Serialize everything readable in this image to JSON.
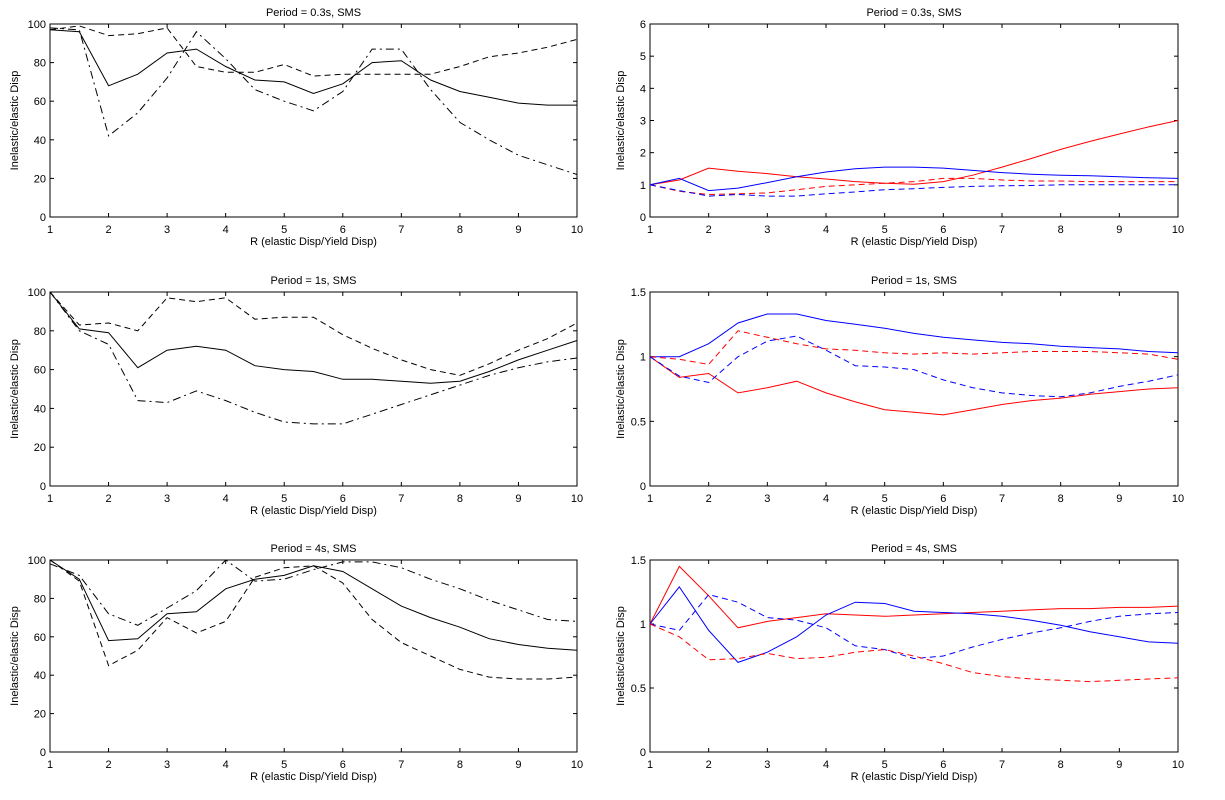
{
  "chart_data": [
    {
      "type": "line",
      "title": "Period = 0.3s, SMS",
      "xlabel": "R (elastic Disp/Yield Disp)",
      "ylabel": "Inelastic/elastic Disp",
      "xlim": [
        1,
        10
      ],
      "ylim": [
        0,
        100
      ],
      "x": [
        1,
        1.5,
        2,
        2.5,
        3,
        3.5,
        4,
        4.5,
        5,
        5.5,
        6,
        6.5,
        7,
        7.5,
        8,
        8.5,
        9,
        9.5,
        10
      ],
      "xticks": [
        1,
        2,
        3,
        4,
        5,
        6,
        7,
        8,
        9,
        10
      ],
      "yticks": [
        0,
        20,
        40,
        60,
        80,
        100
      ],
      "series": [
        {
          "color": "#000000",
          "dash": "solid",
          "values": [
            97,
            96,
            68,
            74,
            85,
            87,
            78,
            71,
            70,
            64,
            69,
            80,
            81,
            71,
            65,
            62,
            59,
            58,
            58
          ]
        },
        {
          "color": "#000000",
          "dash": "dashed",
          "values": [
            97,
            99,
            94,
            95,
            98,
            78,
            75,
            75,
            79,
            73,
            74,
            74,
            74,
            74,
            78,
            83,
            85,
            88,
            92
          ]
        },
        {
          "color": "#000000",
          "dash": "dashdot",
          "values": [
            98,
            97,
            42,
            54,
            72,
            96,
            82,
            66,
            60,
            55,
            65,
            87,
            87,
            66,
            49,
            40,
            32,
            27,
            22
          ]
        }
      ]
    },
    {
      "type": "line",
      "title": "Period = 0.3s, SMS",
      "xlabel": "R (elastic Disp/Yield Disp)",
      "ylabel": "Inelastic/elastic Disp",
      "xlim": [
        1,
        10
      ],
      "ylim": [
        0,
        6
      ],
      "x": [
        1,
        1.5,
        2,
        2.5,
        3,
        3.5,
        4,
        4.5,
        5,
        5.5,
        6,
        6.5,
        7,
        7.5,
        8,
        8.5,
        9,
        9.5,
        10
      ],
      "xticks": [
        1,
        2,
        3,
        4,
        5,
        6,
        7,
        8,
        9,
        10
      ],
      "yticks": [
        0,
        1,
        2,
        3,
        4,
        5,
        6
      ],
      "series": [
        {
          "color": "#ff0000",
          "dash": "solid",
          "values": [
            1.0,
            1.15,
            1.52,
            1.42,
            1.35,
            1.25,
            1.18,
            1.1,
            1.05,
            1.02,
            1.1,
            1.3,
            1.55,
            1.82,
            2.1,
            2.35,
            2.58,
            2.8,
            3.0
          ]
        },
        {
          "color": "#0000ff",
          "dash": "solid",
          "values": [
            1.0,
            1.2,
            0.82,
            0.9,
            1.07,
            1.25,
            1.4,
            1.5,
            1.55,
            1.55,
            1.52,
            1.45,
            1.38,
            1.33,
            1.3,
            1.28,
            1.25,
            1.22,
            1.2
          ]
        },
        {
          "color": "#ff0000",
          "dash": "dashed",
          "values": [
            1.0,
            0.8,
            0.7,
            0.72,
            0.75,
            0.85,
            0.95,
            1.0,
            1.05,
            1.1,
            1.2,
            1.2,
            1.15,
            1.12,
            1.12,
            1.1,
            1.1,
            1.1,
            1.1
          ]
        },
        {
          "color": "#0000ff",
          "dash": "dashed",
          "values": [
            1.0,
            0.82,
            0.65,
            0.7,
            0.65,
            0.65,
            0.72,
            0.78,
            0.85,
            0.88,
            0.92,
            0.95,
            0.97,
            0.98,
            1.0,
            1.0,
            1.0,
            1.0,
            1.0
          ]
        }
      ]
    },
    {
      "type": "line",
      "title": "Period = 1s, SMS",
      "xlabel": "R (elastic Disp/Yield Disp)",
      "ylabel": "Inelastic/elastic Disp",
      "xlim": [
        1,
        10
      ],
      "ylim": [
        0,
        100
      ],
      "x": [
        1,
        1.5,
        2,
        2.5,
        3,
        3.5,
        4,
        4.5,
        5,
        5.5,
        6,
        6.5,
        7,
        7.5,
        8,
        8.5,
        9,
        9.5,
        10
      ],
      "xticks": [
        1,
        2,
        3,
        4,
        5,
        6,
        7,
        8,
        9,
        10
      ],
      "yticks": [
        0,
        20,
        40,
        60,
        80,
        100
      ],
      "series": [
        {
          "color": "#000000",
          "dash": "solid",
          "values": [
            100,
            81,
            79,
            61,
            70,
            72,
            70,
            62,
            60,
            59,
            55,
            55,
            54,
            53,
            54,
            59,
            65,
            70,
            75
          ]
        },
        {
          "color": "#000000",
          "dash": "dashed",
          "values": [
            100,
            83,
            84,
            80,
            97,
            95,
            97,
            86,
            87,
            87,
            78,
            71,
            65,
            60,
            57,
            63,
            70,
            76,
            84
          ]
        },
        {
          "color": "#000000",
          "dash": "dashdot",
          "values": [
            100,
            80,
            73,
            44,
            43,
            49,
            44,
            38,
            33,
            32,
            32,
            37,
            42,
            47,
            52,
            57,
            61,
            64,
            66
          ]
        }
      ]
    },
    {
      "type": "line",
      "title": "Period = 1s, SMS",
      "xlabel": "R (elastic Disp/Yield Disp)",
      "ylabel": "Inelastic/elastic Disp",
      "xlim": [
        1,
        10
      ],
      "ylim": [
        0,
        1.5
      ],
      "x": [
        1,
        1.5,
        2,
        2.5,
        3,
        3.5,
        4,
        4.5,
        5,
        5.5,
        6,
        6.5,
        7,
        7.5,
        8,
        8.5,
        9,
        9.5,
        10
      ],
      "xticks": [
        1,
        2,
        3,
        4,
        5,
        6,
        7,
        8,
        9,
        10
      ],
      "yticks": [
        0,
        0.5,
        1,
        1.5
      ],
      "series": [
        {
          "color": "#0000ff",
          "dash": "solid",
          "values": [
            1.0,
            1.0,
            1.1,
            1.26,
            1.33,
            1.33,
            1.28,
            1.25,
            1.22,
            1.18,
            1.15,
            1.13,
            1.11,
            1.1,
            1.08,
            1.07,
            1.06,
            1.04,
            1.03
          ]
        },
        {
          "color": "#ff0000",
          "dash": "solid",
          "values": [
            1.0,
            0.84,
            0.87,
            0.72,
            0.76,
            0.81,
            0.72,
            0.65,
            0.59,
            0.57,
            0.55,
            0.59,
            0.63,
            0.66,
            0.68,
            0.71,
            0.73,
            0.75,
            0.76
          ]
        },
        {
          "color": "#ff0000",
          "dash": "dashed",
          "values": [
            1.0,
            0.98,
            0.94,
            1.2,
            1.15,
            1.1,
            1.06,
            1.05,
            1.03,
            1.02,
            1.03,
            1.02,
            1.03,
            1.04,
            1.04,
            1.04,
            1.03,
            1.02,
            0.98
          ]
        },
        {
          "color": "#0000ff",
          "dash": "dashed",
          "values": [
            1.0,
            0.85,
            0.8,
            1.0,
            1.12,
            1.16,
            1.05,
            0.93,
            0.92,
            0.9,
            0.82,
            0.76,
            0.72,
            0.7,
            0.69,
            0.72,
            0.77,
            0.81,
            0.86
          ]
        }
      ]
    },
    {
      "type": "line",
      "title": "Period = 4s, SMS",
      "xlabel": "R (elastic Disp/Yield Disp)",
      "ylabel": "Inelastic/elastic Disp",
      "xlim": [
        1,
        10
      ],
      "ylim": [
        0,
        100
      ],
      "x": [
        1,
        1.5,
        2,
        2.5,
        3,
        3.5,
        4,
        4.5,
        5,
        5.5,
        6,
        6.5,
        7,
        7.5,
        8,
        8.5,
        9,
        9.5,
        10
      ],
      "xticks": [
        1,
        2,
        3,
        4,
        5,
        6,
        7,
        8,
        9,
        10
      ],
      "yticks": [
        0,
        20,
        40,
        60,
        80,
        100
      ],
      "series": [
        {
          "color": "#000000",
          "dash": "solid",
          "values": [
            100,
            90,
            58,
            59,
            72,
            73,
            85,
            90,
            92,
            97,
            94,
            85,
            76,
            70,
            65,
            59,
            56,
            54,
            53
          ]
        },
        {
          "color": "#000000",
          "dash": "dashed",
          "values": [
            100,
            89,
            45,
            53,
            70,
            62,
            68,
            91,
            96,
            97,
            88,
            69,
            57,
            50,
            43,
            39,
            38,
            38,
            39
          ]
        },
        {
          "color": "#000000",
          "dash": "dashdot",
          "values": [
            98,
            92,
            72,
            66,
            75,
            84,
            100,
            89,
            90,
            95,
            99,
            99,
            96,
            90,
            85,
            79,
            74,
            69,
            68
          ]
        }
      ]
    },
    {
      "type": "line",
      "title": "Period = 4s, SMS",
      "xlabel": "R (elastic Disp/Yield Disp)",
      "ylabel": "Inelastic/elastic Disp",
      "xlim": [
        1,
        10
      ],
      "ylim": [
        0,
        1.5
      ],
      "x": [
        1,
        1.5,
        2,
        2.5,
        3,
        3.5,
        4,
        4.5,
        5,
        5.5,
        6,
        6.5,
        7,
        7.5,
        8,
        8.5,
        9,
        9.5,
        10
      ],
      "xticks": [
        1,
        2,
        3,
        4,
        5,
        6,
        7,
        8,
        9,
        10
      ],
      "yticks": [
        0,
        0.5,
        1,
        1.5
      ],
      "series": [
        {
          "color": "#ff0000",
          "dash": "solid",
          "values": [
            1.0,
            1.45,
            1.22,
            0.97,
            1.02,
            1.05,
            1.08,
            1.07,
            1.06,
            1.07,
            1.08,
            1.09,
            1.1,
            1.11,
            1.12,
            1.12,
            1.13,
            1.13,
            1.14
          ]
        },
        {
          "color": "#0000ff",
          "dash": "solid",
          "values": [
            1.0,
            1.29,
            0.95,
            0.7,
            0.78,
            0.9,
            1.07,
            1.17,
            1.16,
            1.1,
            1.09,
            1.08,
            1.06,
            1.03,
            0.99,
            0.94,
            0.9,
            0.86,
            0.85
          ]
        },
        {
          "color": "#0000ff",
          "dash": "dashed",
          "values": [
            1.0,
            0.95,
            1.23,
            1.17,
            1.05,
            1.03,
            0.97,
            0.83,
            0.8,
            0.73,
            0.75,
            0.82,
            0.88,
            0.93,
            0.97,
            1.02,
            1.06,
            1.08,
            1.09
          ]
        },
        {
          "color": "#ff0000",
          "dash": "dashed",
          "values": [
            1.0,
            0.9,
            0.72,
            0.73,
            0.77,
            0.73,
            0.74,
            0.78,
            0.8,
            0.75,
            0.69,
            0.62,
            0.59,
            0.57,
            0.56,
            0.55,
            0.56,
            0.57,
            0.58
          ]
        }
      ]
    }
  ]
}
